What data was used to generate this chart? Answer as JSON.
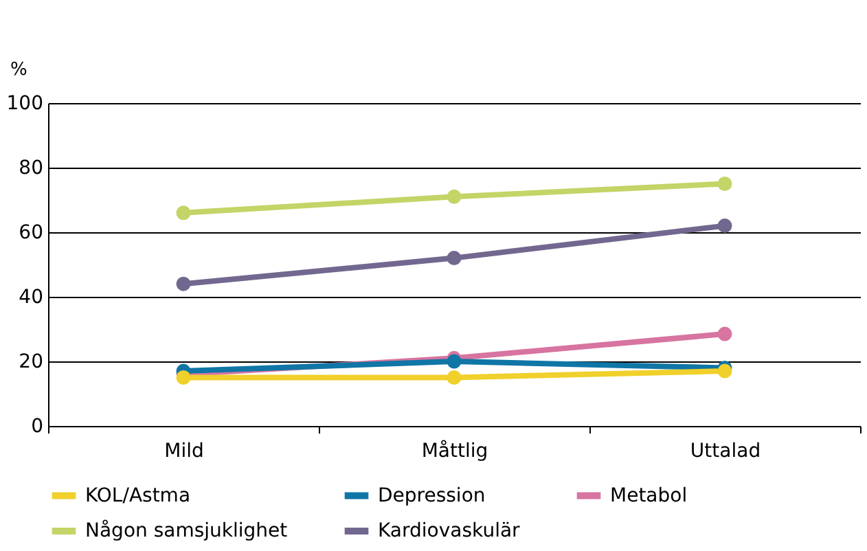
{
  "chart_data": {
    "type": "line",
    "ylabel": "%",
    "categories": [
      "Mild",
      "Måttlig",
      "Uttalad"
    ],
    "series": [
      {
        "name": "KOL/Astma",
        "color": "#f0d02a",
        "values": [
          15,
          15,
          17
        ]
      },
      {
        "name": "Depression",
        "color": "#0f76a6",
        "values": [
          17,
          20,
          18
        ]
      },
      {
        "name": "Metabol",
        "color": "#d774a0",
        "values": [
          16,
          21,
          28.5
        ]
      },
      {
        "name": "Någon samsjuklighet",
        "color": "#c4d467",
        "values": [
          66,
          71,
          75
        ]
      },
      {
        "name": "Kardiovaskulär",
        "color": "#72688f",
        "values": [
          44,
          52,
          62
        ]
      }
    ],
    "ylim": [
      0,
      100
    ],
    "yticks": [
      0,
      20,
      40,
      60,
      80,
      100
    ],
    "grid": "y",
    "legend": "bottom",
    "marker": "circle",
    "line_style": "solid"
  }
}
